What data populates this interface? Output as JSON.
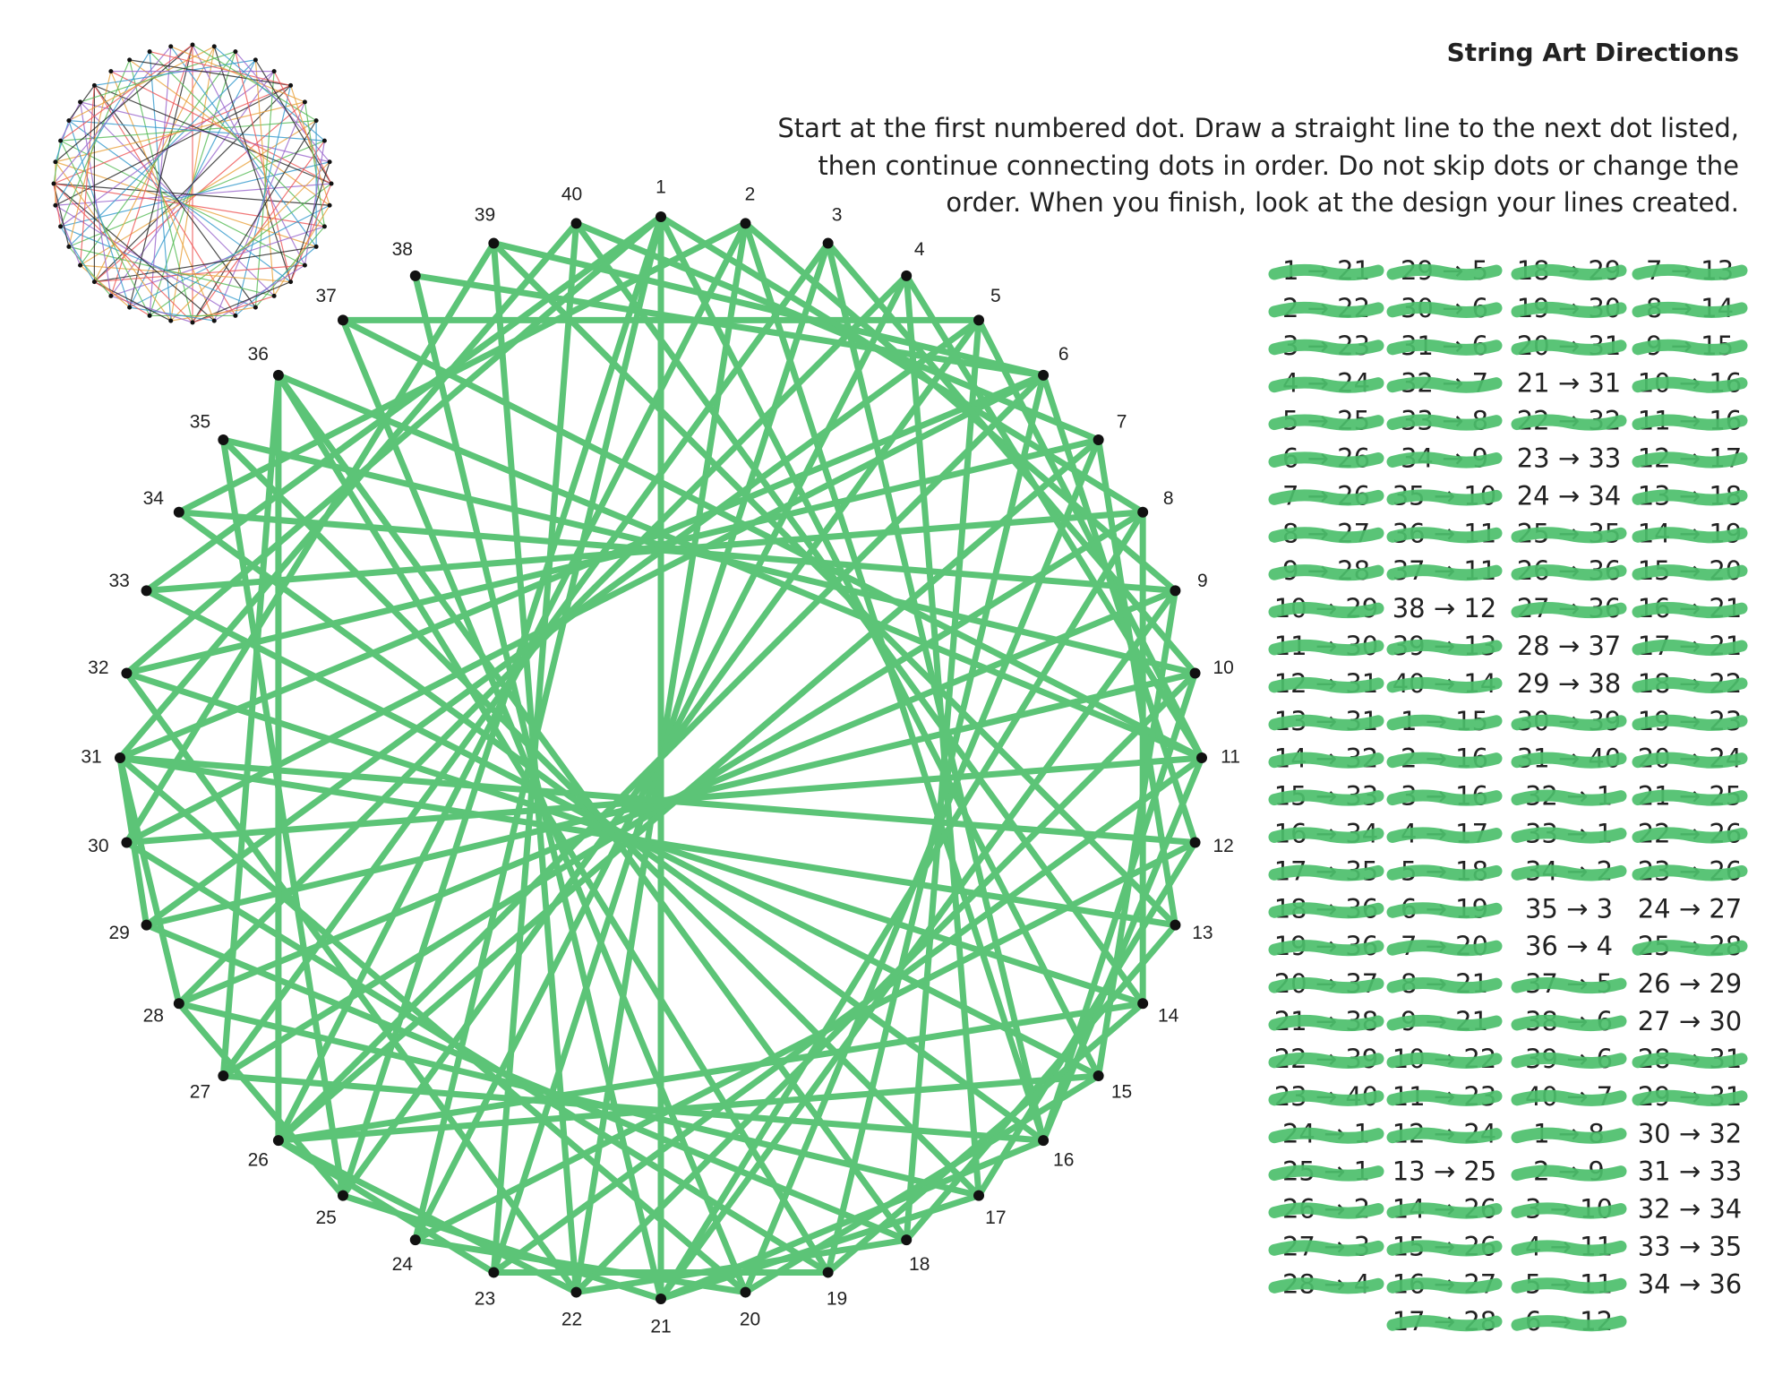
{
  "header": {
    "title": "String Art Directions",
    "instructions": [
      "Start at the first numbered dot. Draw a straight line to the next dot listed,",
      "then continue connecting dots in order. Do not skip dots or change the",
      "order. When you finish, look at the design your lines created."
    ]
  },
  "dots": [
    "1",
    "2",
    "3",
    "4",
    "5",
    "6",
    "7",
    "8",
    "9",
    "10",
    "11",
    "12",
    "13",
    "14",
    "15",
    "16",
    "17",
    "18",
    "19",
    "20",
    "21",
    "22",
    "23",
    "24",
    "25",
    "26",
    "27",
    "28",
    "29",
    "30",
    "31",
    "32",
    "33",
    "34",
    "35",
    "36",
    "37",
    "38",
    "39",
    "40"
  ],
  "columns": [
    [
      {
        "text": "1 → 21",
        "crossed": true
      },
      {
        "text": "2 → 22",
        "crossed": true
      },
      {
        "text": "3 → 23",
        "crossed": true
      },
      {
        "text": "4 → 24",
        "crossed": true
      },
      {
        "text": "5 → 25",
        "crossed": true
      },
      {
        "text": "6 → 26",
        "crossed": true
      },
      {
        "text": "7 → 26",
        "crossed": true
      },
      {
        "text": "8 → 27",
        "crossed": true
      },
      {
        "text": "9 → 28",
        "crossed": true
      },
      {
        "text": "10 → 29",
        "crossed": true
      },
      {
        "text": "11 → 30",
        "crossed": true
      },
      {
        "text": "12 → 31",
        "crossed": true
      },
      {
        "text": "13 → 31",
        "crossed": true
      },
      {
        "text": "14 → 32",
        "crossed": true
      },
      {
        "text": "15 → 33",
        "crossed": true
      },
      {
        "text": "16 → 34",
        "crossed": true
      },
      {
        "text": "17 → 35",
        "crossed": true
      },
      {
        "text": "18 → 36",
        "crossed": true
      },
      {
        "text": "19 → 36",
        "crossed": true
      },
      {
        "text": "20 → 37",
        "crossed": true
      },
      {
        "text": "21 → 38",
        "crossed": true
      },
      {
        "text": "22 → 39",
        "crossed": true
      },
      {
        "text": "23 → 40",
        "crossed": true
      },
      {
        "text": "24 → 1",
        "crossed": true
      },
      {
        "text": "25 → 1",
        "crossed": true
      },
      {
        "text": "26 → 2",
        "crossed": true
      },
      {
        "text": "27 → 3",
        "crossed": true
      },
      {
        "text": "28 → 4",
        "crossed": true
      }
    ],
    [
      {
        "text": "29 → 5",
        "crossed": true
      },
      {
        "text": "30 → 6",
        "crossed": true
      },
      {
        "text": "31 → 6",
        "crossed": true
      },
      {
        "text": "32 → 7",
        "crossed": true
      },
      {
        "text": "33 → 8",
        "crossed": true
      },
      {
        "text": "34 → 9",
        "crossed": true
      },
      {
        "text": "35 → 10",
        "crossed": true
      },
      {
        "text": "36 → 11",
        "crossed": true
      },
      {
        "text": "37 → 11",
        "crossed": true
      },
      {
        "text": "38 → 12",
        "crossed": false
      },
      {
        "text": "39 → 13",
        "crossed": true
      },
      {
        "text": "40 → 14",
        "crossed": true
      },
      {
        "text": "1 → 15",
        "crossed": true
      },
      {
        "text": "2 → 16",
        "crossed": true
      },
      {
        "text": "3 → 16",
        "crossed": true
      },
      {
        "text": "4 → 17",
        "crossed": true
      },
      {
        "text": "5 → 18",
        "crossed": true
      },
      {
        "text": "6 → 19",
        "crossed": true
      },
      {
        "text": "7 → 20",
        "crossed": true
      },
      {
        "text": "8 → 21",
        "crossed": true
      },
      {
        "text": "9 → 21",
        "crossed": true
      },
      {
        "text": "10 → 22",
        "crossed": true
      },
      {
        "text": "11 → 23",
        "crossed": true
      },
      {
        "text": "12 → 24",
        "crossed": true
      },
      {
        "text": "13 → 25",
        "crossed": false
      },
      {
        "text": "14 → 26",
        "crossed": true
      },
      {
        "text": "15 → 26",
        "crossed": true
      },
      {
        "text": "16 → 27",
        "crossed": true
      },
      {
        "text": "17 → 28",
        "crossed": true
      }
    ],
    [
      {
        "text": "18 → 29",
        "crossed": true
      },
      {
        "text": "19 → 30",
        "crossed": true
      },
      {
        "text": "20 → 31",
        "crossed": true
      },
      {
        "text": "21 → 31",
        "crossed": false
      },
      {
        "text": "22 → 32",
        "crossed": true
      },
      {
        "text": "23 → 33",
        "crossed": false
      },
      {
        "text": "24 → 34",
        "crossed": false
      },
      {
        "text": "25 → 35",
        "crossed": true
      },
      {
        "text": "26 → 36",
        "crossed": true
      },
      {
        "text": "27 → 36",
        "crossed": true
      },
      {
        "text": "28 → 37",
        "crossed": false
      },
      {
        "text": "29 → 38",
        "crossed": false
      },
      {
        "text": "30 → 39",
        "crossed": true
      },
      {
        "text": "31 → 40",
        "crossed": true
      },
      {
        "text": "32 → 1",
        "crossed": true
      },
      {
        "text": "33 → 1",
        "crossed": true
      },
      {
        "text": "34 → 2",
        "crossed": true
      },
      {
        "text": "35 → 3",
        "crossed": false
      },
      {
        "text": "36 → 4",
        "crossed": false
      },
      {
        "text": "37 → 5",
        "crossed": true
      },
      {
        "text": "38 → 6",
        "crossed": true
      },
      {
        "text": "39 → 6",
        "crossed": true
      },
      {
        "text": "40 → 7",
        "crossed": true
      },
      {
        "text": "1 → 8",
        "crossed": true
      },
      {
        "text": "2 → 9",
        "crossed": true
      },
      {
        "text": "3 → 10",
        "crossed": true
      },
      {
        "text": "4 → 11",
        "crossed": true
      },
      {
        "text": "5 → 11",
        "crossed": true
      },
      {
        "text": "6 → 12",
        "crossed": true
      }
    ],
    [
      {
        "text": "7 → 13",
        "crossed": true
      },
      {
        "text": "8 → 14",
        "crossed": true
      },
      {
        "text": "9 → 15",
        "crossed": true
      },
      {
        "text": "10 → 16",
        "crossed": true
      },
      {
        "text": "11 → 16",
        "crossed": true
      },
      {
        "text": "12 → 17",
        "crossed": true
      },
      {
        "text": "13 → 18",
        "crossed": true
      },
      {
        "text": "14 → 19",
        "crossed": true
      },
      {
        "text": "15 → 20",
        "crossed": true
      },
      {
        "text": "16 → 21",
        "crossed": true
      },
      {
        "text": "17 → 21",
        "crossed": true
      },
      {
        "text": "18 → 22",
        "crossed": true
      },
      {
        "text": "19 → 23",
        "crossed": true
      },
      {
        "text": "20 → 24",
        "crossed": true
      },
      {
        "text": "21 → 25",
        "crossed": true
      },
      {
        "text": "22 → 26",
        "crossed": true
      },
      {
        "text": "23 → 26",
        "crossed": true
      },
      {
        "text": "24 → 27",
        "crossed": false
      },
      {
        "text": "25 → 28",
        "crossed": true
      },
      {
        "text": "26 → 29",
        "crossed": false
      },
      {
        "text": "27 → 30",
        "crossed": false
      },
      {
        "text": "28 → 31",
        "crossed": true
      },
      {
        "text": "29 → 31",
        "crossed": true
      },
      {
        "text": "30 → 32",
        "crossed": false
      },
      {
        "text": "31 → 33",
        "crossed": false
      },
      {
        "text": "32 → 34",
        "crossed": false
      },
      {
        "text": "33 → 35",
        "crossed": false
      },
      {
        "text": "34 → 36",
        "crossed": false
      }
    ]
  ]
}
